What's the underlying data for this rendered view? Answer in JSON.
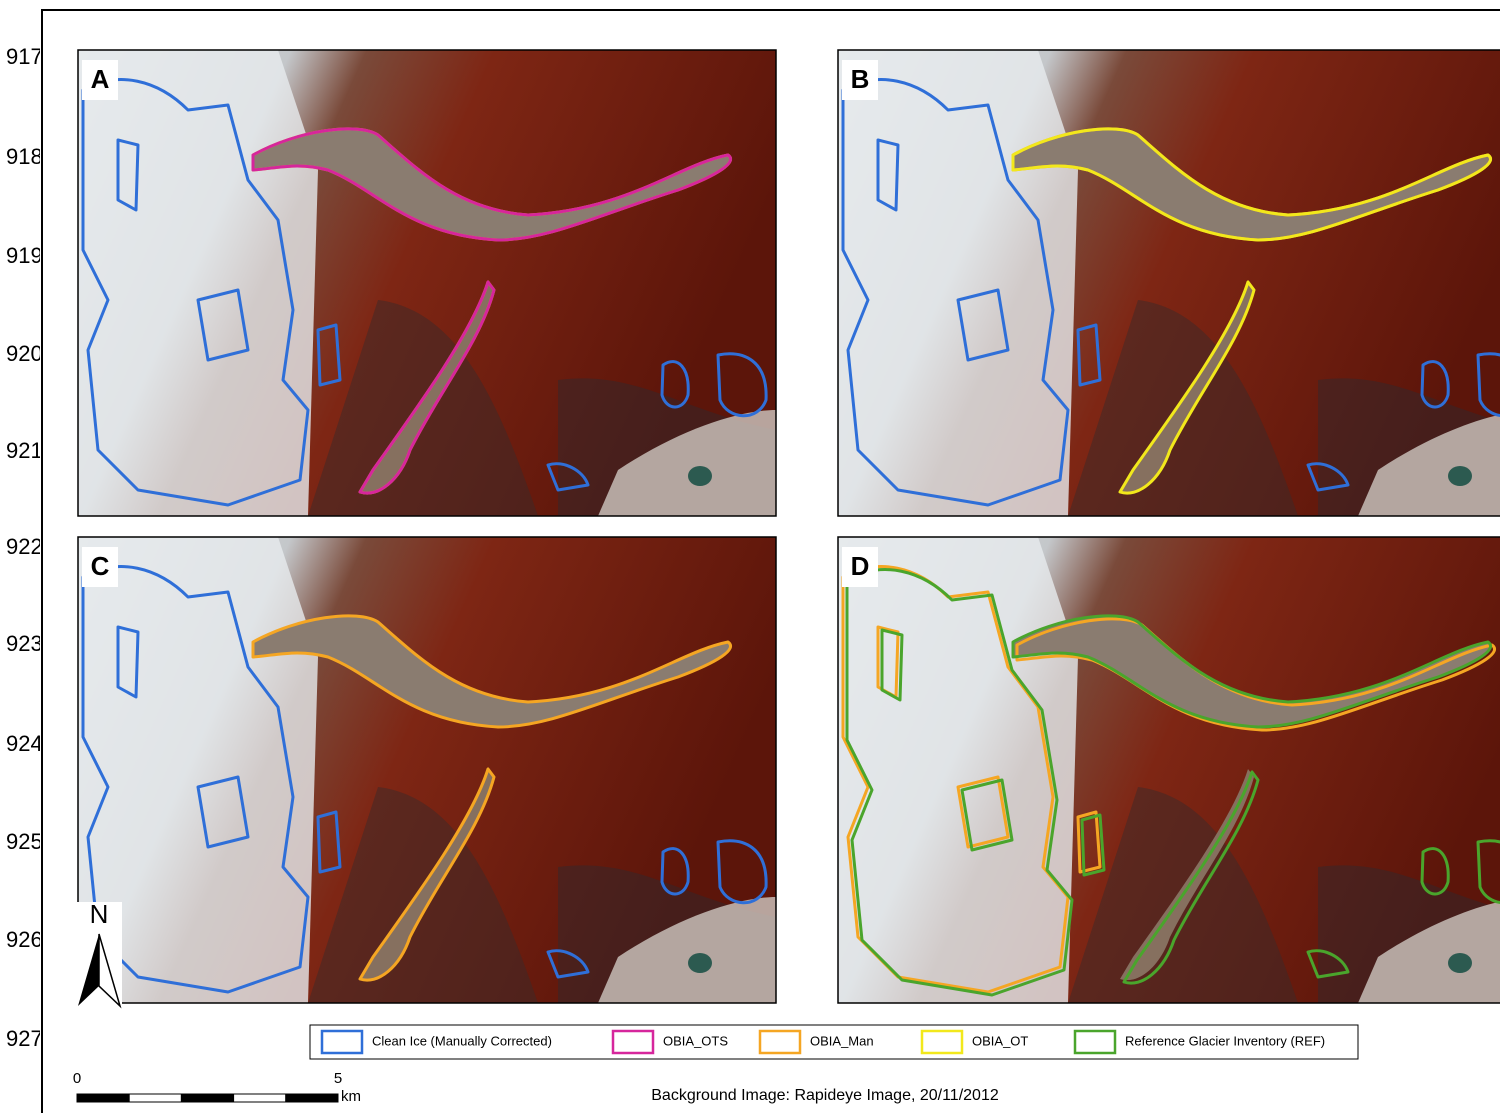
{
  "line_numbers": [
    "917",
    "918",
    "919",
    "920",
    "921",
    "922",
    "923",
    "924",
    "925",
    "926",
    "927"
  ],
  "panels": [
    {
      "label": "A"
    },
    {
      "label": "B"
    },
    {
      "label": "C"
    },
    {
      "label": "D"
    }
  ],
  "legend": [
    {
      "label": "Clean Ice (Manually Corrected)",
      "color": "#2f6fd8"
    },
    {
      "label": "OBIA_OTS",
      "color": "#d6269c"
    },
    {
      "label": "OBIA_Man",
      "color": "#f5a623"
    },
    {
      "label": "OBIA_OT",
      "color": "#f2e81c"
    },
    {
      "label": "Reference Glacier Inventory (REF)",
      "color": "#4aa52c"
    }
  ],
  "north": "N",
  "scale_bar": {
    "start": 0,
    "end": 5,
    "unit": "km"
  },
  "caption": "Background Image: Rapideye Image, 20/11/2012"
}
